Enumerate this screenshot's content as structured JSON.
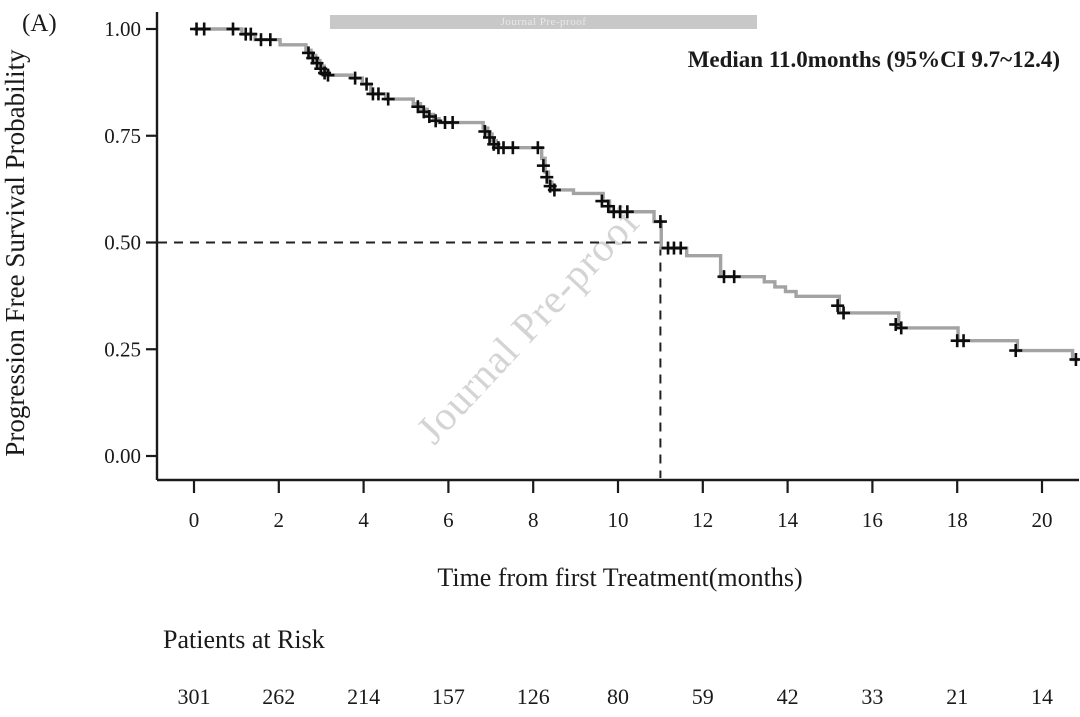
{
  "panel_label": "(A)",
  "annotation": {
    "median_text": "Median 11.0months (95%CI 9.7~12.4)"
  },
  "watermark": {
    "bar_text": "Journal Pre-proof",
    "diagonal_text": "Journal Pre-proof"
  },
  "risk_table": {
    "title": "Patients at Risk"
  },
  "colors": {
    "curve": "#a3a3a3",
    "censor": "#0d0d0d",
    "axis": "#1a1a1a",
    "dashed": "#222222",
    "watermark_bar": "#c8c8c8",
    "watermark_text": "#d4d4d4"
  },
  "chart_data": {
    "type": "line",
    "subtype": "kaplan-meier-step",
    "title": "",
    "xlabel": "Time from first Treatment(months)",
    "ylabel": "Progression Free Survival Probability",
    "xlim": [
      0,
      21
    ],
    "ylim": [
      0,
      1
    ],
    "grid": false,
    "legend": "none",
    "x_ticks": [
      0,
      2,
      4,
      6,
      8,
      10,
      12,
      14,
      16,
      18,
      20
    ],
    "y_ticks": [
      0.0,
      0.25,
      0.5,
      0.75,
      1.0
    ],
    "y_tick_labels": [
      "0.00",
      "0.25",
      "0.50",
      "0.75",
      "1.00"
    ],
    "median": {
      "time": 11.0,
      "survival": 0.5,
      "ci_low": 9.7,
      "ci_high": 12.4
    },
    "series": [
      {
        "name": "Progression Free Survival",
        "color": "#a3a3a3",
        "end_time": 20.9,
        "steps": [
          [
            0,
            1.0
          ],
          [
            1.13,
            0.988
          ],
          [
            1.44,
            0.975
          ],
          [
            2.03,
            0.963
          ],
          [
            2.64,
            0.95
          ],
          [
            2.76,
            0.938
          ],
          [
            2.87,
            0.926
          ],
          [
            2.97,
            0.913
          ],
          [
            3.07,
            0.901
          ],
          [
            3.17,
            0.892
          ],
          [
            3.72,
            0.885
          ],
          [
            3.97,
            0.871
          ],
          [
            4.17,
            0.848
          ],
          [
            4.52,
            0.836
          ],
          [
            5.17,
            0.825
          ],
          [
            5.34,
            0.812
          ],
          [
            5.5,
            0.8
          ],
          [
            5.65,
            0.79
          ],
          [
            5.78,
            0.781
          ],
          [
            6.82,
            0.768
          ],
          [
            6.93,
            0.754
          ],
          [
            7.03,
            0.738
          ],
          [
            7.13,
            0.722
          ],
          [
            8.2,
            0.697
          ],
          [
            8.28,
            0.665
          ],
          [
            8.36,
            0.641
          ],
          [
            8.44,
            0.623
          ],
          [
            8.95,
            0.615
          ],
          [
            9.65,
            0.597
          ],
          [
            9.8,
            0.572
          ],
          [
            10.85,
            0.549
          ],
          [
            11.02,
            0.487
          ],
          [
            11.62,
            0.469
          ],
          [
            12.42,
            0.42
          ],
          [
            13.45,
            0.408
          ],
          [
            13.7,
            0.396
          ],
          [
            13.95,
            0.385
          ],
          [
            14.2,
            0.374
          ],
          [
            15.22,
            0.335
          ],
          [
            16.62,
            0.3
          ],
          [
            18.02,
            0.27
          ],
          [
            19.42,
            0.247
          ],
          [
            20.72,
            0.226
          ]
        ]
      }
    ],
    "censor_marks": [
      [
        0.06,
        1.0
      ],
      [
        0.24,
        1.0
      ],
      [
        0.92,
        1.0
      ],
      [
        1.22,
        0.988
      ],
      [
        1.34,
        0.988
      ],
      [
        1.58,
        0.975
      ],
      [
        1.8,
        0.975
      ],
      [
        2.7,
        0.944
      ],
      [
        2.8,
        0.932
      ],
      [
        2.9,
        0.92
      ],
      [
        2.99,
        0.907
      ],
      [
        3.08,
        0.897
      ],
      [
        3.16,
        0.892
      ],
      [
        3.8,
        0.885
      ],
      [
        4.07,
        0.871
      ],
      [
        4.22,
        0.848
      ],
      [
        4.35,
        0.848
      ],
      [
        4.58,
        0.836
      ],
      [
        5.28,
        0.818
      ],
      [
        5.42,
        0.806
      ],
      [
        5.55,
        0.795
      ],
      [
        5.7,
        0.785
      ],
      [
        5.92,
        0.781
      ],
      [
        6.1,
        0.781
      ],
      [
        6.86,
        0.76
      ],
      [
        6.97,
        0.746
      ],
      [
        7.07,
        0.73
      ],
      [
        7.18,
        0.722
      ],
      [
        7.3,
        0.722
      ],
      [
        7.52,
        0.722
      ],
      [
        8.11,
        0.722
      ],
      [
        8.24,
        0.68
      ],
      [
        8.32,
        0.653
      ],
      [
        8.4,
        0.632
      ],
      [
        8.5,
        0.623
      ],
      [
        9.62,
        0.597
      ],
      [
        9.77,
        0.585
      ],
      [
        9.9,
        0.572
      ],
      [
        10.05,
        0.572
      ],
      [
        10.22,
        0.572
      ],
      [
        11.0,
        0.549
      ],
      [
        11.18,
        0.487
      ],
      [
        11.32,
        0.487
      ],
      [
        11.48,
        0.487
      ],
      [
        12.5,
        0.42
      ],
      [
        12.74,
        0.42
      ],
      [
        15.18,
        0.352
      ],
      [
        15.32,
        0.335
      ],
      [
        16.55,
        0.308
      ],
      [
        16.68,
        0.3
      ],
      [
        18.0,
        0.27
      ],
      [
        18.15,
        0.27
      ],
      [
        19.38,
        0.247
      ],
      [
        20.8,
        0.226
      ]
    ],
    "patients_at_risk": {
      "times": [
        0,
        2,
        4,
        6,
        8,
        10,
        12,
        14,
        16,
        18,
        20
      ],
      "counts": [
        301,
        262,
        214,
        157,
        126,
        80,
        59,
        42,
        33,
        21,
        14
      ]
    }
  }
}
